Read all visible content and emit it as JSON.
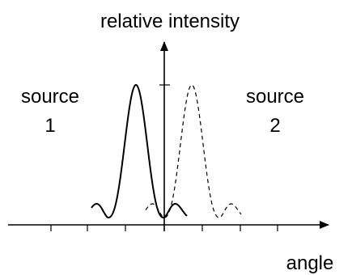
{
  "labels": {
    "y_axis": "relative intensity",
    "x_axis": "angle",
    "source1_line1": "source",
    "source1_line2": "1",
    "source2_line1": "source",
    "source2_line2": "2"
  },
  "colors": {
    "ink": "#000000",
    "background": "#ffffff"
  },
  "curves": {
    "source_1": {
      "style": "solid",
      "relative_peak": 1.0
    },
    "source_2": {
      "style": "dashed",
      "relative_peak": 1.0
    }
  }
}
